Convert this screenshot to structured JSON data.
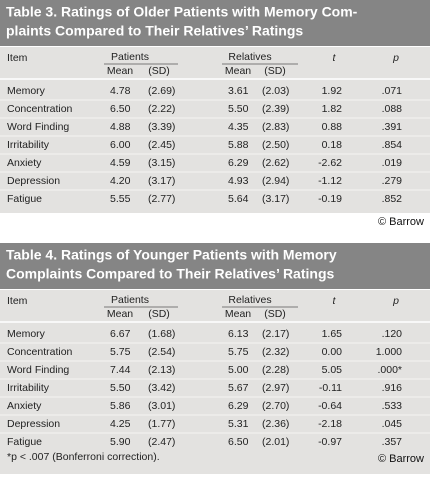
{
  "tables": [
    {
      "title": [
        "Table 3. Ratings of Older Patients with Memory Com-",
        "plaints Compared to Their Relatives’ Ratings"
      ],
      "header": {
        "item": "Item",
        "patients": "Patients",
        "relatives": "Relatives",
        "columns": [
          "Mean",
          "(SD)",
          "Mean",
          "(SD)",
          "t",
          "p"
        ]
      },
      "rows": [
        [
          "Memory",
          "4.78",
          "(2.69)",
          "3.61",
          "(2.03)",
          "1.92",
          ".071"
        ],
        [
          "Concentration",
          "6.50",
          "(2.22)",
          "5.50",
          "(2.39)",
          "1.82",
          ".088"
        ],
        [
          "Word Finding",
          "4.88",
          "(3.39)",
          "4.35",
          "(2.83)",
          "0.88",
          ".391"
        ],
        [
          "Irritability",
          "6.00",
          "(2.45)",
          "5.88",
          "(2.50)",
          "0.18",
          ".854"
        ],
        [
          "Anxiety",
          "4.59",
          "(3.15)",
          "6.29",
          "(2.62)",
          "-2.62",
          ".019"
        ],
        [
          "Depression",
          "4.20",
          "(3.17)",
          "4.93",
          "(2.94)",
          "-1.12",
          ".279"
        ],
        [
          "Fatigue",
          "5.55",
          "(2.77)",
          "5.64",
          "(3.17)",
          "-0.19",
          ".852"
        ]
      ],
      "credit": "© Barrow"
    },
    {
      "title": [
        "Table 4. Ratings of Younger Patients with Memory",
        "Complaints Compared to Their Relatives’ Ratings"
      ],
      "header": {
        "item": "Item",
        "patients": "Patients",
        "relatives": "Relatives",
        "columns": [
          "Mean",
          "(SD)",
          "Mean",
          "(SD)",
          "t",
          "p"
        ]
      },
      "rows": [
        [
          "Memory",
          "6.67",
          "(1.68)",
          "6.13",
          "(2.17)",
          "1.65",
          ".120"
        ],
        [
          "Concentration",
          "5.75",
          "(2.54)",
          "5.75",
          "(2.32)",
          "0.00",
          "1.000"
        ],
        [
          "Word Finding",
          "7.44",
          "(2.13)",
          "5.00",
          "(2.28)",
          "5.05",
          ".000*"
        ],
        [
          "Irritability",
          "5.50",
          "(3.42)",
          "5.67",
          "(2.97)",
          "-0.11",
          ".916"
        ],
        [
          "Anxiety",
          "5.86",
          "(3.01)",
          "6.29",
          "(2.70)",
          "-0.64",
          ".533"
        ],
        [
          "Depression",
          "4.25",
          "(1.77)",
          "5.31",
          "(2.36)",
          "-2.18",
          ".045"
        ],
        [
          "Fatigue",
          "5.90",
          "(2.47)",
          "6.50",
          "(2.01)",
          "-0.97",
          ".357"
        ]
      ],
      "footnote": "*p < .007 (Bonferroni correction).",
      "credit": "© Barrow"
    }
  ]
}
